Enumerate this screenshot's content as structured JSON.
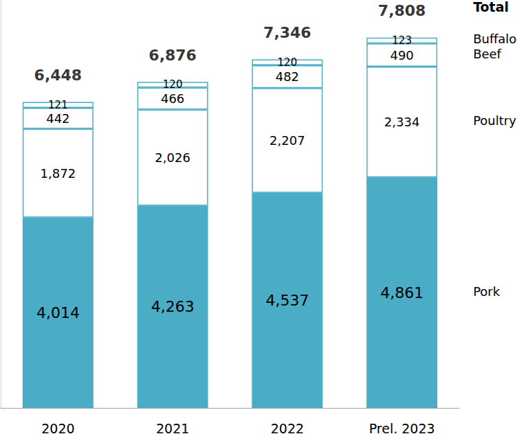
{
  "chart_data": {
    "type": "bar",
    "stacked": true,
    "data_labels": true,
    "tick_labels": "x",
    "grid": false,
    "categories": [
      "2020",
      "2021",
      "2022",
      "Prel. 2023"
    ],
    "ylim": [
      0,
      8600
    ],
    "series": [
      {
        "name": "Pork",
        "color": "#4bacc6",
        "values": [
          4014,
          4263,
          4537,
          4861
        ],
        "value_labels": [
          "4,014",
          "4,263",
          "4,537",
          "4,861"
        ]
      },
      {
        "name": "Poultry",
        "color": "#ffffff",
        "values": [
          1872,
          2026,
          2207,
          2334
        ],
        "value_labels": [
          "1,872",
          "2,026",
          "2,207",
          "2,334"
        ]
      },
      {
        "name": "Beef",
        "color": "#ffffff",
        "values": [
          442,
          466,
          482,
          490
        ]
      },
      {
        "name": "Buffalo",
        "color": "#ffffff",
        "values": [
          121,
          120,
          120,
          123
        ]
      }
    ],
    "totals": {
      "name": "Total",
      "values": [
        6448,
        6876,
        7346,
        7808
      ],
      "value_labels": [
        "6,448",
        "6,876",
        "7,346",
        "7,808"
      ]
    }
  }
}
